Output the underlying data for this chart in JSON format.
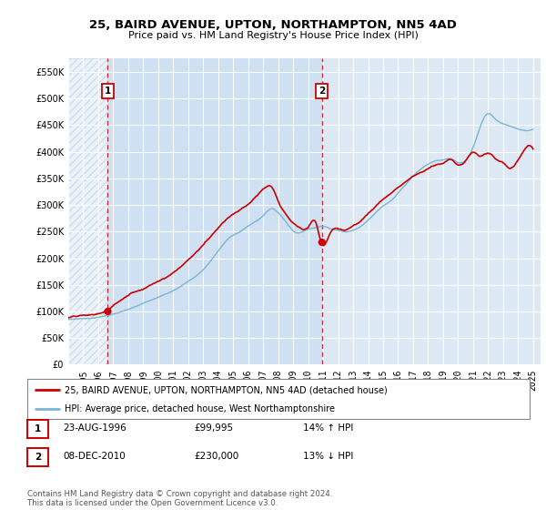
{
  "title_line1": "25, BAIRD AVENUE, UPTON, NORTHAMPTON, NN5 4AD",
  "title_line2": "Price paid vs. HM Land Registry's House Price Index (HPI)",
  "legend_label_red": "25, BAIRD AVENUE, UPTON, NORTHAMPTON, NN5 4AD (detached house)",
  "legend_label_blue": "HPI: Average price, detached house, West Northamptonshire",
  "footnote": "Contains HM Land Registry data © Crown copyright and database right 2024.\nThis data is licensed under the Open Government Licence v3.0.",
  "table": [
    {
      "num": "1",
      "date": "23-AUG-1996",
      "price": "£99,995",
      "change": "14% ↑ HPI"
    },
    {
      "num": "2",
      "date": "08-DEC-2010",
      "price": "£230,000",
      "change": "13% ↓ HPI"
    }
  ],
  "sale1_x": 1996.64,
  "sale1_y": 99995,
  "sale2_x": 2010.92,
  "sale2_y": 230000,
  "hpi_color": "#7ab4d4",
  "price_color": "#cc0000",
  "bg_color": "#dce9f5",
  "bg_hatch_color": "#c8d8e8",
  "ylim_min": 0,
  "ylim_max": 575000,
  "xlim_min": 1994.0,
  "xlim_max": 2025.5,
  "yticks": [
    0,
    50000,
    100000,
    150000,
    200000,
    250000,
    300000,
    350000,
    400000,
    450000,
    500000,
    550000
  ]
}
